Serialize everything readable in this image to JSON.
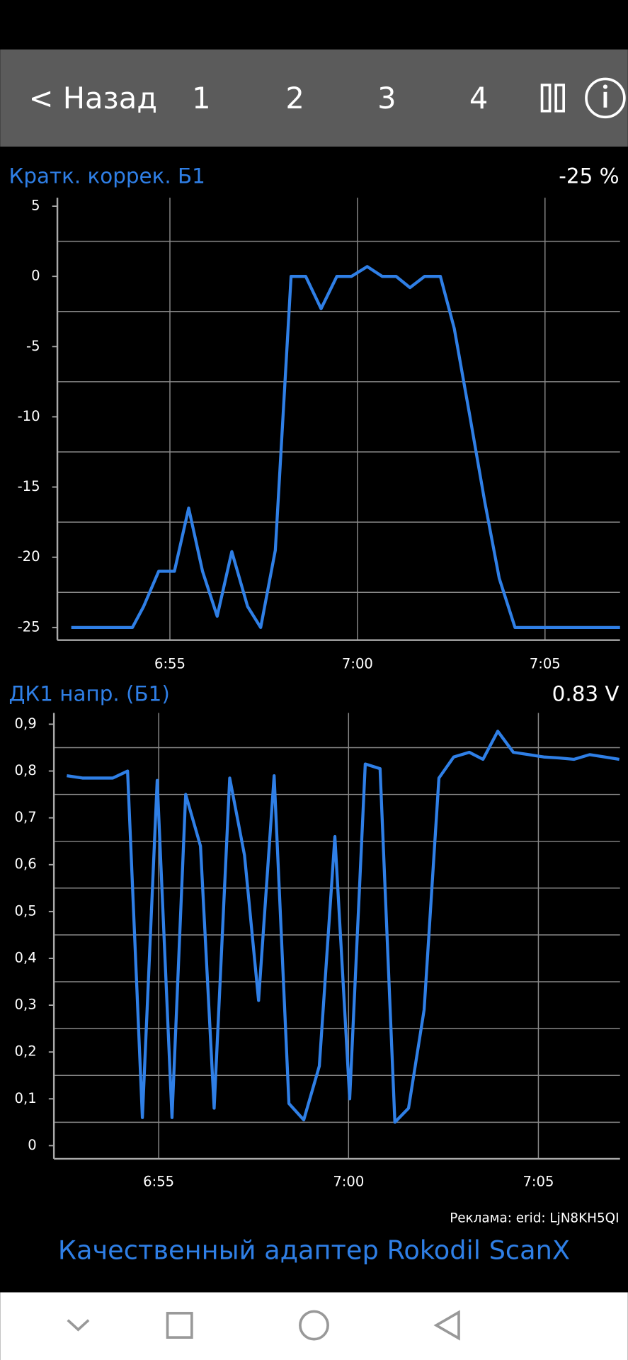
{
  "toolbar": {
    "back": "< Назад",
    "tabs": [
      "1",
      "2",
      "3",
      "4"
    ]
  },
  "chart_data": [
    {
      "type": "line",
      "title": "Кратк. коррек. Б1",
      "current_value": "-25 %",
      "x": [
        412.37,
        414.0,
        414.3,
        414.7,
        415.12,
        415.5,
        415.87,
        416.26,
        416.65,
        417.07,
        417.42,
        417.81,
        418.23,
        418.62,
        419.03,
        419.45,
        419.84,
        420.26,
        420.66,
        421.03,
        421.4,
        421.79,
        422.21,
        422.58,
        423.0,
        423.39,
        423.78,
        424.2,
        427.0
      ],
      "series": [
        {
          "color": "#2f7fe6",
          "values": [
            -25,
            -25,
            -23.5,
            -21,
            -21,
            -16.5,
            -21,
            -24.2,
            -19.6,
            -23.5,
            -25,
            -19.5,
            0,
            0,
            -2.3,
            0,
            0,
            0.7,
            0,
            0,
            -0.8,
            0,
            0,
            -3.7,
            -10,
            -16,
            -21.5,
            -25,
            -25
          ]
        }
      ],
      "xlim": [
        412,
        427
      ],
      "xticks": [
        {
          "value": 415,
          "label": "6:55"
        },
        {
          "value": 420,
          "label": "7:00"
        },
        {
          "value": 425,
          "label": "7:05"
        }
      ],
      "ylim": [
        -25.9,
        5.6
      ],
      "yticks": [
        5,
        0,
        -5,
        -10,
        -15,
        -20,
        -25
      ],
      "minor_yticks": [
        2.5,
        -2.5,
        -7.5,
        -12.5,
        -17.5,
        -22.5
      ],
      "grid": true
    },
    {
      "type": "line",
      "title": "ДК1 напр. (Б1)",
      "current_value": "0.83 V",
      "x": [
        412.58,
        412.99,
        413.79,
        414.18,
        414.57,
        414.96,
        415.35,
        415.71,
        416.1,
        416.46,
        416.87,
        417.26,
        417.63,
        418.04,
        418.43,
        418.82,
        419.23,
        419.64,
        420.03,
        420.44,
        420.83,
        421.22,
        421.58,
        421.99,
        422.38,
        422.77,
        423.18,
        423.54,
        423.93,
        424.34,
        424.75,
        425.14,
        425.53,
        425.94,
        426.35,
        426.74,
        427.13
      ],
      "series": [
        {
          "color": "#2f7fe6",
          "values": [
            0.79,
            0.785,
            0.785,
            0.8,
            0.06,
            0.78,
            0.06,
            0.75,
            0.64,
            0.08,
            0.785,
            0.62,
            0.31,
            0.79,
            0.09,
            0.055,
            0.17,
            0.66,
            0.1,
            0.815,
            0.805,
            0.05,
            0.08,
            0.29,
            0.785,
            0.83,
            0.84,
            0.825,
            0.885,
            0.84,
            0.835,
            0.83,
            0.828,
            0.825,
            0.835,
            0.83,
            0.825
          ]
        }
      ],
      "xlim": [
        412.24,
        427.15
      ],
      "xticks": [
        {
          "value": 415,
          "label": "6:55"
        },
        {
          "value": 420,
          "label": "7:00"
        },
        {
          "value": 425,
          "label": "7:05"
        }
      ],
      "ylim": [
        -0.028,
        0.924
      ],
      "yticks": [
        {
          "value": 0.9,
          "label": "0,9"
        },
        {
          "value": 0.8,
          "label": "0,8"
        },
        {
          "value": 0.7,
          "label": "0,7"
        },
        {
          "value": 0.6,
          "label": "0,6"
        },
        {
          "value": 0.5,
          "label": "0,5"
        },
        {
          "value": 0.4,
          "label": "0,4"
        },
        {
          "value": 0.3,
          "label": "0,3"
        },
        {
          "value": 0.2,
          "label": "0,2"
        },
        {
          "value": 0.1,
          "label": "0,1"
        },
        0
      ],
      "minor_yticks": [
        0.85,
        0.75,
        0.65,
        0.55,
        0.45,
        0.35,
        0.25,
        0.15,
        0.05
      ],
      "grid": true
    }
  ],
  "ad": {
    "label": "Реклама: erid: LjN8KH5QI",
    "text": "Качественный адаптер Rokodil ScanX"
  }
}
